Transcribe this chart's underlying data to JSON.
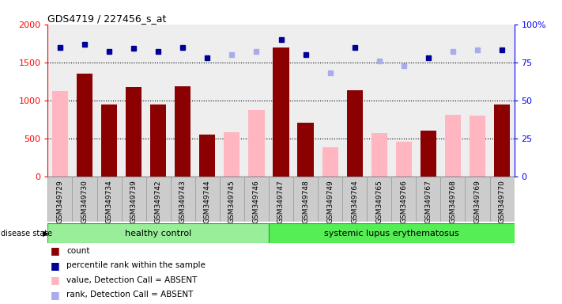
{
  "title": "GDS4719 / 227456_s_at",
  "samples": [
    "GSM349729",
    "GSM349730",
    "GSM349734",
    "GSM349739",
    "GSM349742",
    "GSM349743",
    "GSM349744",
    "GSM349745",
    "GSM349746",
    "GSM349747",
    "GSM349748",
    "GSM349749",
    "GSM349764",
    "GSM349765",
    "GSM349766",
    "GSM349767",
    "GSM349768",
    "GSM349769",
    "GSM349770"
  ],
  "healthy_count": 9,
  "groups": [
    "healthy control",
    "systemic lupus erythematosus"
  ],
  "bar_color_present": "#8B0000",
  "bar_color_absent": "#FFB6C1",
  "dot_color_present": "#000099",
  "dot_color_absent": "#AAAAEE",
  "count_values": [
    0,
    1350,
    940,
    1170,
    940,
    1185,
    550,
    0,
    0,
    1700,
    710,
    0,
    1130,
    0,
    0,
    600,
    0,
    0,
    940
  ],
  "absent_bar_values": [
    1120,
    0,
    0,
    0,
    0,
    0,
    0,
    580,
    870,
    0,
    0,
    380,
    0,
    570,
    460,
    0,
    810,
    800,
    0
  ],
  "rank_present": [
    85,
    87,
    82,
    84,
    82,
    85,
    78,
    0,
    0,
    90,
    80,
    0,
    85,
    0,
    0,
    78,
    0,
    0,
    83
  ],
  "rank_absent": [
    85,
    0,
    0,
    0,
    0,
    0,
    0,
    80,
    82,
    0,
    0,
    68,
    0,
    76,
    73,
    0,
    82,
    83,
    0
  ],
  "ylim_left": [
    0,
    2000
  ],
  "ylim_right": [
    0,
    100
  ],
  "yticks_left": [
    0,
    500,
    1000,
    1500,
    2000
  ],
  "yticks_right": [
    0,
    25,
    50,
    75,
    100
  ],
  "grid_values": [
    500,
    1000,
    1500
  ],
  "plot_bg_color": "#eeeeee",
  "healthy_color": "#99EE99",
  "sle_color": "#55EE55",
  "group_border_color": "#22AA22",
  "legend_items": [
    "count",
    "percentile rank within the sample",
    "value, Detection Call = ABSENT",
    "rank, Detection Call = ABSENT"
  ],
  "legend_colors": [
    "#8B0000",
    "#000099",
    "#FFB6C1",
    "#AAAAEE"
  ]
}
